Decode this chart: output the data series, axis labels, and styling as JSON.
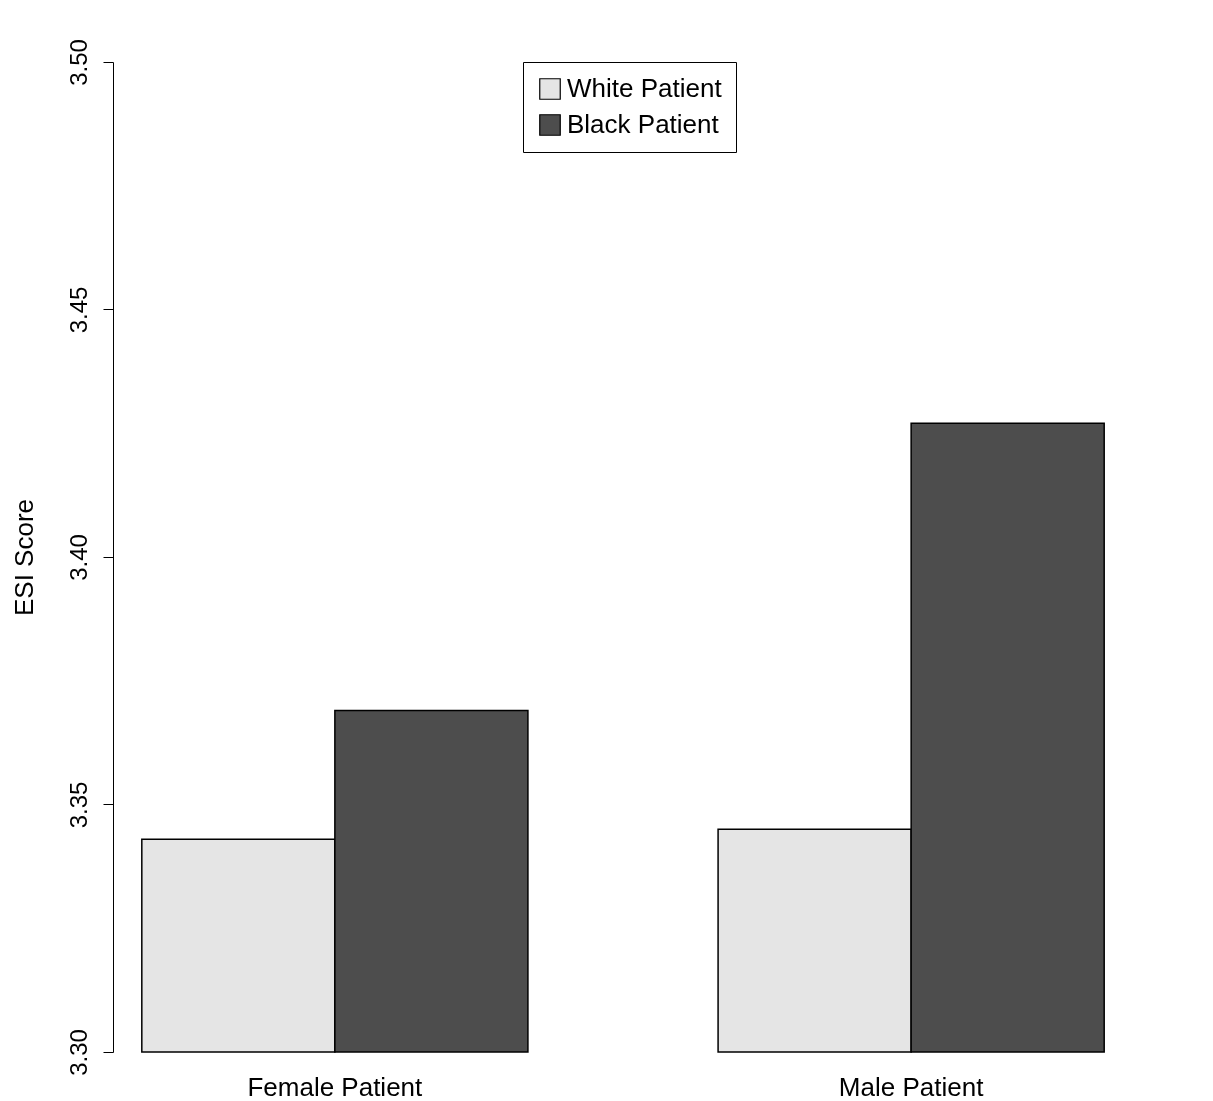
{
  "chart_data": {
    "type": "bar",
    "ylabel": "ESI Score",
    "categories": [
      "Female Patient",
      "Male Patient"
    ],
    "series": [
      {
        "name": "White Patient",
        "color": "#e5e5e5",
        "values": [
          3.343,
          3.345
        ]
      },
      {
        "name": "Black Patient",
        "color": "#4d4d4d",
        "values": [
          3.369,
          3.427
        ]
      }
    ],
    "ylim": [
      3.3,
      3.5
    ],
    "yticks": [
      {
        "value": 3.3,
        "label": "3.30"
      },
      {
        "value": 3.35,
        "label": "3.35"
      },
      {
        "value": 3.4,
        "label": "3.40"
      },
      {
        "value": 3.45,
        "label": "3.45"
      },
      {
        "value": 3.5,
        "label": "3.50"
      }
    ],
    "grid": false,
    "legend": "top"
  }
}
